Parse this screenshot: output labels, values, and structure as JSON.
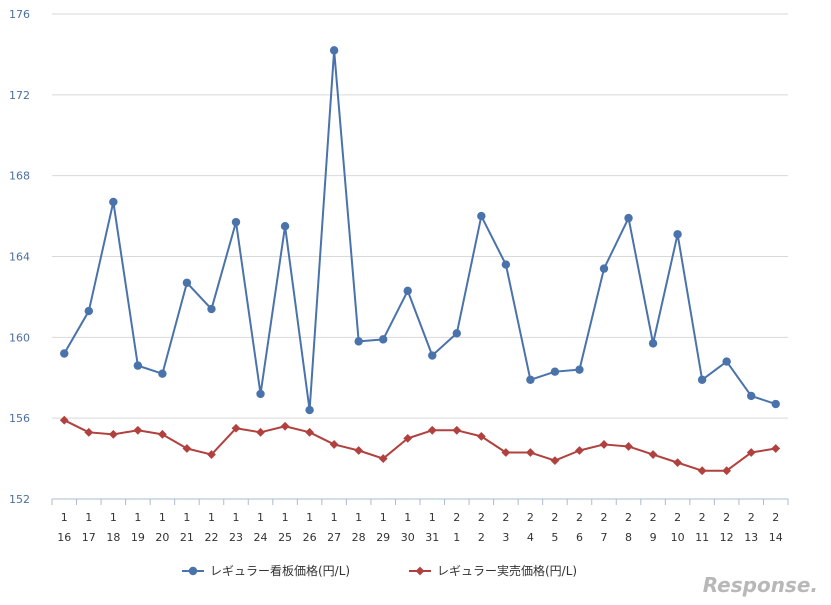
{
  "chart_data": {
    "type": "line",
    "title": "",
    "xlabel": "",
    "ylabel": "",
    "ylim": [
      152,
      176
    ],
    "y_ticks": [
      152,
      156,
      160,
      164,
      168,
      172,
      176
    ],
    "grid": true,
    "legend_position": "bottom",
    "x": [
      {
        "month": "1",
        "day": "16"
      },
      {
        "month": "1",
        "day": "17"
      },
      {
        "month": "1",
        "day": "18"
      },
      {
        "month": "1",
        "day": "19"
      },
      {
        "month": "1",
        "day": "20"
      },
      {
        "month": "1",
        "day": "21"
      },
      {
        "month": "1",
        "day": "22"
      },
      {
        "month": "1",
        "day": "23"
      },
      {
        "month": "1",
        "day": "24"
      },
      {
        "month": "1",
        "day": "25"
      },
      {
        "month": "1",
        "day": "26"
      },
      {
        "month": "1",
        "day": "27"
      },
      {
        "month": "1",
        "day": "28"
      },
      {
        "month": "1",
        "day": "29"
      },
      {
        "month": "1",
        "day": "30"
      },
      {
        "month": "1",
        "day": "31"
      },
      {
        "month": "2",
        "day": "1"
      },
      {
        "month": "2",
        "day": "2"
      },
      {
        "month": "2",
        "day": "3"
      },
      {
        "month": "2",
        "day": "4"
      },
      {
        "month": "2",
        "day": "5"
      },
      {
        "month": "2",
        "day": "6"
      },
      {
        "month": "2",
        "day": "7"
      },
      {
        "month": "2",
        "day": "8"
      },
      {
        "month": "2",
        "day": "9"
      },
      {
        "month": "2",
        "day": "10"
      },
      {
        "month": "2",
        "day": "11"
      },
      {
        "month": "2",
        "day": "12"
      },
      {
        "month": "2",
        "day": "13"
      },
      {
        "month": "2",
        "day": "14"
      }
    ],
    "series": [
      {
        "name": "レギュラー看板価格(円/L)",
        "color": "#4a72ab",
        "marker": "circle",
        "values": [
          159.2,
          161.3,
          166.7,
          158.6,
          158.2,
          162.7,
          161.4,
          165.7,
          157.2,
          165.5,
          156.4,
          174.2,
          159.8,
          159.9,
          162.3,
          159.1,
          160.2,
          166.0,
          163.6,
          157.9,
          158.3,
          158.4,
          163.4,
          165.9,
          159.7,
          165.1,
          157.9,
          158.8,
          157.1,
          156.7
        ]
      },
      {
        "name": "レギュラー実売価格(円/L)",
        "color": "#b0413e",
        "marker": "diamond",
        "values": [
          155.9,
          155.3,
          155.2,
          155.4,
          155.2,
          154.5,
          154.2,
          155.5,
          155.3,
          155.6,
          155.3,
          154.7,
          154.4,
          154.0,
          155.0,
          155.4,
          155.4,
          155.1,
          154.3,
          154.3,
          153.9,
          154.4,
          154.7,
          154.6,
          154.2,
          153.8,
          153.4,
          153.4,
          154.3,
          154.5
        ]
      }
    ]
  },
  "watermark": "Response."
}
